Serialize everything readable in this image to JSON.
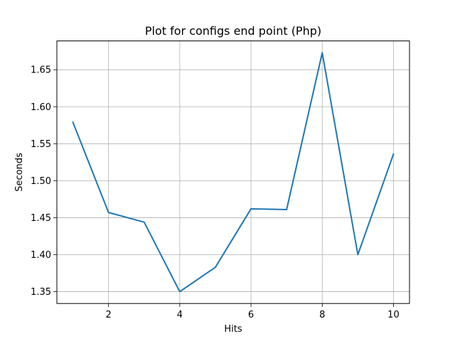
{
  "chart_data": {
    "type": "line",
    "title": "Plot for configs end point (Php)",
    "xlabel": "Hits",
    "ylabel": "Seconds",
    "x": [
      1,
      2,
      3,
      4,
      5,
      6,
      7,
      8,
      9,
      10
    ],
    "series": [
      {
        "values": [
          1.579,
          1.457,
          1.444,
          1.35,
          1.383,
          1.462,
          1.461,
          1.673,
          1.4,
          1.536
        ],
        "color": "#1f77b4"
      }
    ],
    "xlim": [
      0.55,
      10.45
    ],
    "ylim": [
      1.334,
      1.689
    ],
    "xticks": [
      2,
      4,
      6,
      8,
      10
    ],
    "xtick_labels": [
      "2",
      "4",
      "6",
      "8",
      "10"
    ],
    "yticks": [
      1.35,
      1.4,
      1.45,
      1.5,
      1.55,
      1.6,
      1.65
    ],
    "ytick_labels": [
      "1.35",
      "1.40",
      "1.45",
      "1.50",
      "1.55",
      "1.60",
      "1.65"
    ],
    "grid": true,
    "legend": false
  }
}
